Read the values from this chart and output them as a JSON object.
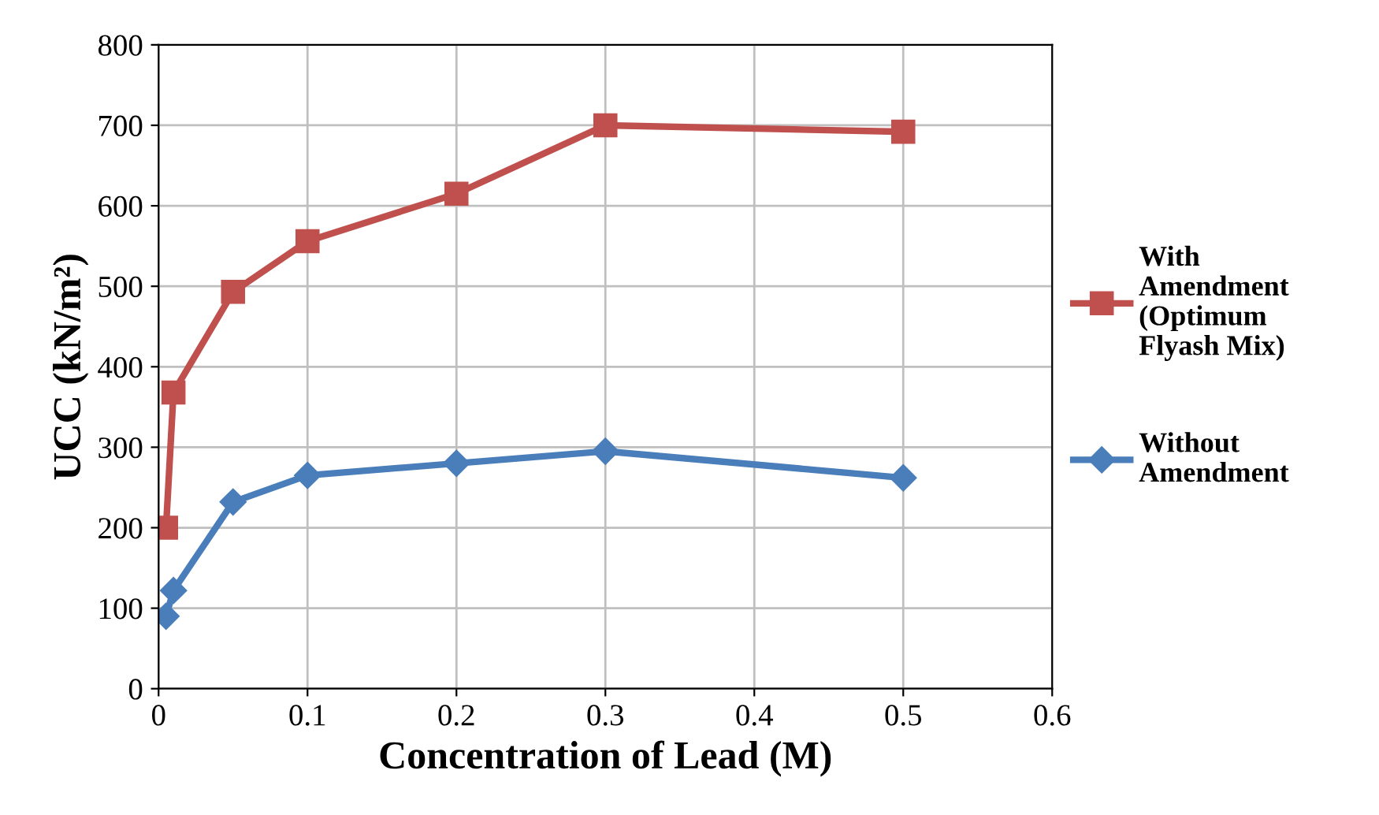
{
  "chart_data": {
    "type": "line",
    "xlabel": "Concentration of Lead (M)",
    "ylabel": "UCC (kN/m²)",
    "xlim": [
      0,
      0.6
    ],
    "xticks": [
      0,
      0.1,
      0.2,
      0.3,
      0.4,
      0.5,
      0.6
    ],
    "ylim": [
      0,
      800
    ],
    "yticks": [
      0,
      100,
      200,
      300,
      400,
      500,
      600,
      700,
      800
    ],
    "grid": true,
    "legend": "right",
    "line_style": "solid",
    "series": [
      {
        "name": "With\nAmendment\n(Optimum\nFlyash Mix)",
        "color": "#c0504d",
        "marker": "square",
        "x": [
          0.005,
          0.01,
          0.05,
          0.1,
          0.2,
          0.3,
          0.5
        ],
        "values": [
          200,
          368,
          493,
          556,
          615,
          700,
          692
        ]
      },
      {
        "name": "Without\nAmendment",
        "color": "#4a7ebb",
        "marker": "diamond",
        "x": [
          0.005,
          0.01,
          0.05,
          0.1,
          0.2,
          0.3,
          0.5
        ],
        "values": [
          90,
          122,
          232,
          265,
          280,
          295,
          262
        ]
      }
    ]
  }
}
